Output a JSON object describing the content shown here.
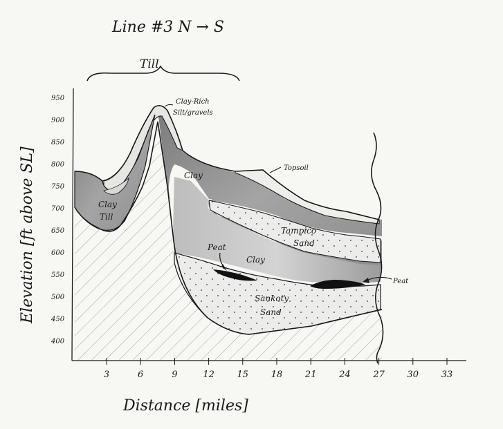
{
  "title": "Line #3   N → S",
  "till_label": "Till",
  "y_axis": {
    "label": "Elevation [ft above SL]",
    "ticks": [
      "950",
      "900",
      "850",
      "800",
      "750",
      "700",
      "650",
      "600",
      "550",
      "500",
      "450",
      "400"
    ]
  },
  "x_axis": {
    "label": "Distance [miles]",
    "ticks": [
      "3",
      "6",
      "9",
      "12",
      "15",
      "18",
      "21",
      "24",
      "27",
      "30",
      "33"
    ]
  },
  "units": {
    "clay_rich": [
      "Clay-Rich",
      "Silt/gravels"
    ],
    "topsoil": "Topsoil",
    "clay_upper": "Clay",
    "clay_till": [
      "Clay",
      "Till"
    ],
    "tampico_sand": [
      "Tampico",
      "Sand"
    ],
    "peat_left": "Peat",
    "clay_middle": "Clay",
    "peat_right": "Peat",
    "sankoty_sand": [
      "Sankoty",
      "Sand"
    ]
  },
  "colors": {
    "clay": "#9a9a9a",
    "clay_dark": "#7d7d7d",
    "sand": "#ebebe6",
    "peat": "#111111",
    "ink": "#1a1a1a",
    "paper": "#f7f7f4"
  }
}
